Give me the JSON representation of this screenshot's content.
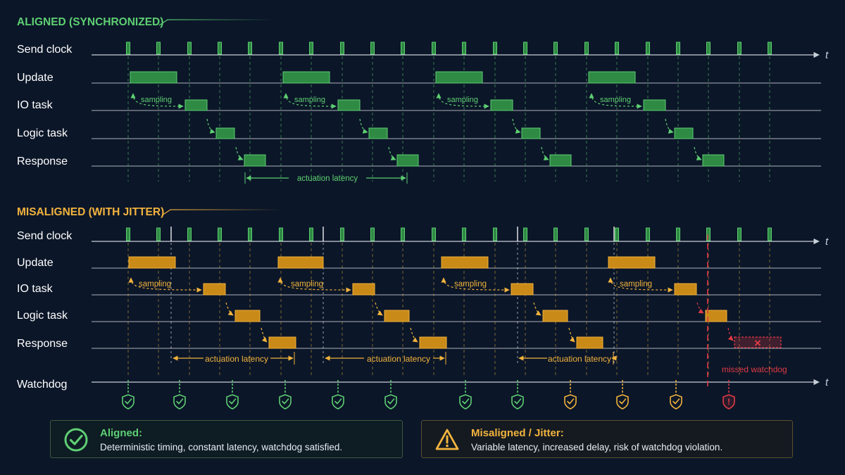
{
  "colors": {
    "background": "#0b1628",
    "aligned": "#5ecf72",
    "aligned_fill": "#2f8a44",
    "misaligned": "#f2b33d",
    "misaligned_fill": "#c98a18",
    "violation": "#e03a45",
    "axis": "#c9cfd8",
    "label": "#ffffff"
  },
  "aligned_section": {
    "title": "ALIGNED (SYNCHRONIZED)",
    "rows": [
      "Send clock",
      "Update",
      "IO task",
      "Logic task",
      "Response"
    ],
    "time_symbol": "t",
    "sampling_label": "sampling",
    "latency_label": "actuation latency"
  },
  "misaligned_section": {
    "title": "MISALIGNED (WITH JITTER)",
    "rows": [
      "Send clock",
      "Update",
      "IO task",
      "Logic task",
      "Response"
    ],
    "time_symbol": "t",
    "sampling_label": "sampling",
    "latency_labels": [
      "actuation latency",
      "actuation latency",
      "actuation latency"
    ],
    "missed_marker": "×",
    "missed_label": "missed watchdog"
  },
  "watchdog": {
    "label": "Watchdog",
    "time_symbol": "t",
    "checks": [
      "ok",
      "ok",
      "ok",
      "ok",
      "ok",
      "ok",
      "ok",
      "ok",
      "warn",
      "warn",
      "warn",
      "fail"
    ],
    "fail_symbol": "!"
  },
  "legend": {
    "aligned": {
      "title": "Aligned:",
      "text": "Deterministic timing, constant latency, watchdog satisfied.",
      "icon": "check-circle-icon"
    },
    "misaligned": {
      "title": "Misaligned / Jitter:",
      "text": "Variable latency, increased delay, risk of watchdog violation.",
      "icon": "warning-triangle-icon"
    }
  }
}
